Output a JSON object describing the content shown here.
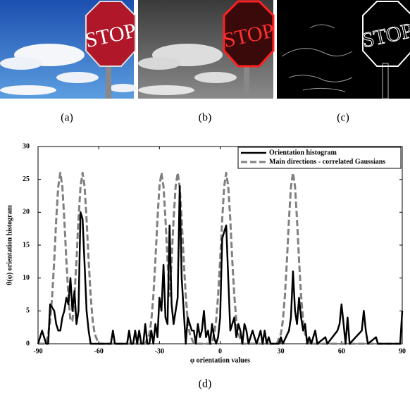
{
  "figure": {
    "images": [
      {
        "caption": "(a)",
        "sign_text": "STOP"
      },
      {
        "caption": "(b)",
        "sign_text": "STOP"
      },
      {
        "caption": "(c)",
        "sign_text": "STOP"
      }
    ],
    "chart_caption": "(d)"
  },
  "chart_data": {
    "type": "line",
    "xlabel": "φ orientation values",
    "ylabel": "θ(φ) orientation histogram",
    "xlim": [
      -90,
      90
    ],
    "ylim": [
      0,
      30
    ],
    "xticks": [
      -90,
      -60,
      -30,
      0,
      30,
      60,
      90
    ],
    "yticks": [
      0,
      5,
      10,
      15,
      20,
      25,
      30
    ],
    "legend": "upper right",
    "series": [
      {
        "name": "Orientation histogram",
        "color": "#000000",
        "dash": "solid",
        "x": [
          -90,
          -89,
          -88,
          -87,
          -86,
          -85,
          -84,
          -83,
          -82,
          -81,
          -80,
          -79,
          -78,
          -77,
          -76,
          -75,
          -74,
          -73,
          -72,
          -71,
          -70,
          -69,
          -68,
          -67,
          -66,
          -65,
          -64,
          -54,
          -53,
          -52,
          -46,
          -45,
          -44,
          -43,
          -42,
          -41,
          -40,
          -39,
          -38,
          -37,
          -36,
          -35,
          -34,
          -33,
          -32,
          -31,
          -30,
          -29,
          -28,
          -27,
          -26,
          -25,
          -24,
          -23,
          -22,
          -21,
          -20,
          -19,
          -18,
          -17,
          -16,
          -15,
          -14,
          -13,
          -12,
          -11,
          -10,
          -9,
          -8,
          -7,
          -6,
          -5,
          -4,
          -3,
          -2,
          -1,
          0,
          1,
          2,
          3,
          4,
          5,
          6,
          7,
          8,
          9,
          10,
          11,
          12,
          13,
          14,
          15,
          16,
          17,
          18,
          19,
          20,
          21,
          22,
          23,
          24,
          25,
          29,
          30,
          31,
          34,
          35,
          36,
          37,
          38,
          39,
          40,
          41,
          42,
          43,
          44,
          45,
          47,
          48,
          52,
          53,
          58,
          59,
          60,
          61,
          62,
          63,
          64,
          70,
          71,
          72,
          73,
          77,
          78,
          89,
          90
        ],
        "values": [
          0,
          1,
          2,
          1,
          0,
          0,
          6,
          5.5,
          5,
          3,
          2,
          2,
          4,
          5,
          7,
          6,
          10,
          5,
          8,
          3,
          5,
          20,
          19,
          12,
          5,
          2,
          0,
          0,
          2,
          0,
          0,
          2,
          0,
          0,
          2,
          0,
          2,
          0,
          0,
          3,
          0,
          0,
          2,
          0,
          3,
          1,
          7,
          5,
          12,
          4,
          3,
          18,
          6,
          3,
          5,
          7,
          24,
          10,
          5,
          0,
          4,
          3,
          2,
          2,
          0,
          3,
          1,
          2,
          5,
          1,
          2,
          0,
          3,
          1,
          0,
          1,
          4,
          16,
          17,
          18,
          10,
          2,
          3,
          4,
          1,
          3,
          2,
          0,
          3,
          2,
          0,
          1,
          2,
          1,
          0,
          1,
          2,
          0,
          2,
          0,
          1,
          0,
          0,
          1,
          0,
          2,
          4,
          11,
          5,
          3,
          7,
          4,
          2,
          3,
          0,
          1,
          0,
          2,
          0,
          1,
          0,
          2,
          3,
          6,
          3,
          0,
          4,
          0,
          2,
          5,
          2,
          0,
          1,
          0,
          0,
          5
        ]
      },
      {
        "name": "Main directions - correlated Gaussians",
        "color": "#808080",
        "dash": "dashed",
        "x": [
          -90,
          -86,
          -85,
          -84,
          -83,
          -82,
          -81,
          -80,
          -79,
          -78,
          -77,
          -76,
          -75,
          -74,
          -73,
          -72,
          -71,
          -70,
          -69,
          -68,
          -67,
          -66,
          -65,
          -64,
          -63,
          -62,
          -60,
          -37,
          -35,
          -34,
          -33,
          -32,
          -31,
          -30,
          -29,
          -28,
          -27,
          -26,
          -25,
          -24,
          -23,
          -22,
          -21,
          -20,
          -19,
          -18,
          -17,
          -16,
          -15,
          -13,
          -4,
          -3,
          -2,
          -1,
          0,
          1,
          2,
          3,
          4,
          5,
          6,
          7,
          8,
          9,
          11,
          28,
          30,
          31,
          32,
          33,
          34,
          35,
          36,
          37,
          38,
          39,
          40,
          41,
          42,
          44,
          90
        ],
        "values": [
          0,
          0,
          1.5,
          3.5,
          7.3,
          12.7,
          18.9,
          23.9,
          26,
          23.9,
          18.9,
          12.7,
          7.3,
          3.5,
          3.5,
          7.3,
          12.7,
          18.9,
          23.9,
          26,
          23.9,
          18.9,
          12.7,
          7.3,
          3.5,
          1.5,
          0,
          0,
          1.5,
          3.5,
          7.3,
          12.7,
          18.9,
          23.9,
          26,
          23.9,
          18.9,
          12.7,
          7.3,
          12.7,
          18.9,
          23.9,
          26,
          23.9,
          18.9,
          12.7,
          7.3,
          3.5,
          1.5,
          0,
          0,
          1.5,
          3.5,
          7.3,
          12.7,
          18.9,
          23.9,
          26,
          23.9,
          18.9,
          12.7,
          7.3,
          3.5,
          1.5,
          0,
          0,
          1.5,
          3.5,
          7.3,
          12.7,
          18.9,
          23.9,
          26,
          23.9,
          18.9,
          12.7,
          7.3,
          3.5,
          1.5,
          0,
          0
        ]
      }
    ]
  }
}
